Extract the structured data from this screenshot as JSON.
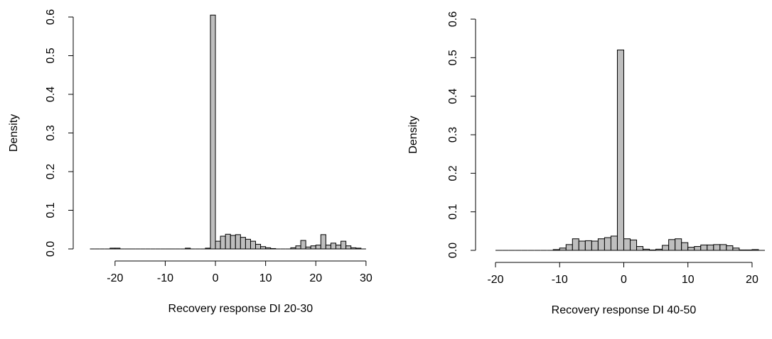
{
  "chart_data": [
    {
      "type": "histogram",
      "x_label": "Recovery response DI 20-30",
      "y_label": "Density",
      "color": "#bebebe",
      "bins": [
        -25,
        -24,
        -23,
        -22,
        -21,
        -20,
        -19,
        -18,
        -17,
        -16,
        -15,
        -14,
        -13,
        -12,
        -11,
        -10,
        -9,
        -8,
        -7,
        -6,
        -5,
        -4,
        -3,
        -2,
        -1,
        0,
        1,
        2,
        3,
        4,
        5,
        6,
        7,
        8,
        9,
        10,
        11,
        12,
        13,
        14,
        15,
        16,
        17,
        18,
        19,
        20,
        21,
        22,
        23,
        24,
        25,
        26,
        27,
        28,
        29,
        30
      ],
      "values": [
        0,
        0,
        0,
        0,
        0.002,
        0.002,
        0,
        0,
        0,
        0,
        0,
        0,
        0,
        0,
        0,
        0,
        0,
        0,
        0,
        0.002,
        0,
        0,
        0,
        0.002,
        0.605,
        0.02,
        0.033,
        0.038,
        0.035,
        0.037,
        0.03,
        0.025,
        0.02,
        0.012,
        0.006,
        0.003,
        0.001,
        0,
        0,
        0,
        0.003,
        0.008,
        0.022,
        0.005,
        0.008,
        0.01,
        0.037,
        0.01,
        0.015,
        0.01,
        0.02,
        0.008,
        0.003,
        0.002,
        0
      ],
      "xlim": [
        -27,
        32
      ],
      "ylim": [
        0,
        0.6
      ],
      "xticks": [
        -20,
        -10,
        0,
        10,
        20,
        30
      ],
      "yticks": [
        {
          "value": 0,
          "label": "0.0"
        },
        0.1,
        0.2,
        0.3,
        0.4,
        0.5,
        0.6
      ]
    },
    {
      "type": "histogram",
      "x_label": "Recovery response DI 40-50",
      "y_label": "Density",
      "color": "#bebebe",
      "bins": [
        -20,
        -19,
        -18,
        -17,
        -16,
        -15,
        -14,
        -13,
        -12,
        -11,
        -10,
        -9,
        -8,
        -7,
        -6,
        -5,
        -4,
        -3,
        -2,
        -1,
        0,
        1,
        2,
        3,
        4,
        5,
        6,
        7,
        8,
        9,
        10,
        11,
        12,
        13,
        14,
        15,
        16,
        17,
        18,
        19,
        20,
        21,
        22
      ],
      "values": [
        0,
        0,
        0,
        0,
        0,
        0,
        0,
        0,
        0,
        0.002,
        0.006,
        0.015,
        0.03,
        0.024,
        0.025,
        0.024,
        0.03,
        0.033,
        0.037,
        0.52,
        0.03,
        0.027,
        0.01,
        0.003,
        0.001,
        0.003,
        0.013,
        0.028,
        0.03,
        0.02,
        0.008,
        0.01,
        0.014,
        0.014,
        0.015,
        0.015,
        0.012,
        0.006,
        0.001,
        0.001,
        0.002,
        0
      ],
      "xlim": [
        -21,
        22
      ],
      "ylim": [
        0,
        0.6
      ],
      "xticks": [
        -20,
        -10,
        0,
        10,
        20
      ],
      "yticks": [
        {
          "value": 0,
          "label": "0.0"
        },
        0.1,
        0.2,
        0.3,
        0.4,
        0.5,
        0.6
      ]
    }
  ]
}
